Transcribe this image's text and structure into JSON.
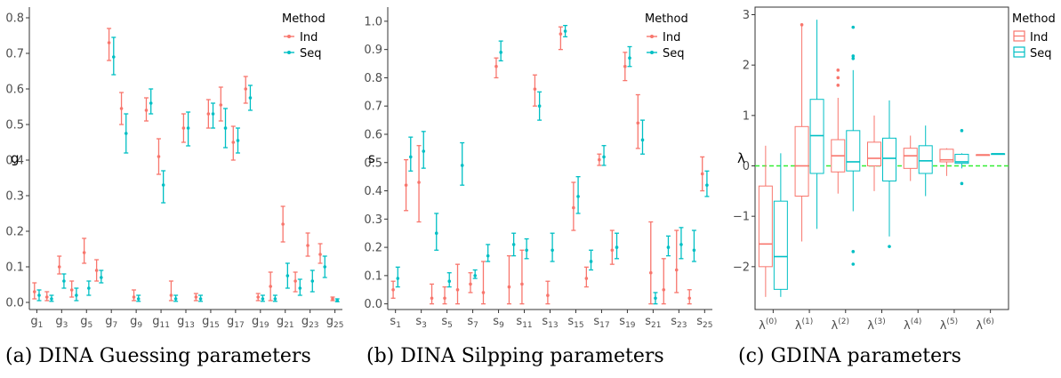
{
  "colors": {
    "ind": "#F8766D",
    "seq": "#00BFC4",
    "zero": "#33ee33"
  },
  "legend": {
    "title": "Method",
    "items": [
      "Ind",
      "Seq"
    ]
  },
  "captions": {
    "a": "(a) DINA Guessing parameters",
    "b": "(b) DINA Silpping parameters",
    "c": "(c) GDINA parameters"
  },
  "chart_data": [
    {
      "type": "scatter",
      "subtype": "errorbar",
      "ylabel": "g",
      "ylim": [
        -0.02,
        0.83
      ],
      "yticks": [
        0.0,
        0.1,
        0.2,
        0.3,
        0.4,
        0.5,
        0.6,
        0.7,
        0.8
      ],
      "ytick_labels": [
        "0.0",
        "0.1",
        "0.2",
        "0.3",
        "0.4",
        "0.5",
        "0.6",
        "0.7",
        "0.8"
      ],
      "x_tick_letter": "g",
      "x_tick_subs": [
        "1",
        "3",
        "5",
        "7",
        "9",
        "11",
        "13",
        "15",
        "17",
        "19",
        "21",
        "23",
        "25"
      ],
      "x_tick_positions": [
        1,
        3,
        5,
        7,
        9,
        11,
        13,
        15,
        17,
        19,
        21,
        23,
        25
      ],
      "xlim": [
        0.4,
        25.6
      ],
      "series": [
        {
          "name": "Ind",
          "x": [
            1,
            2,
            3,
            4,
            5,
            6,
            7,
            8,
            9,
            10,
            11,
            12,
            13,
            14,
            15,
            16,
            17,
            18,
            19,
            20,
            21,
            22,
            23,
            24,
            25
          ],
          "y": [
            0.03,
            0.015,
            0.1,
            0.035,
            0.14,
            0.09,
            0.73,
            0.545,
            0.015,
            0.54,
            0.41,
            0.02,
            0.49,
            0.015,
            0.53,
            0.555,
            0.45,
            0.6,
            0.015,
            0.045,
            0.22,
            0.06,
            0.16,
            0.135,
            0.01
          ],
          "low": [
            0.01,
            0.005,
            0.08,
            0.015,
            0.11,
            0.06,
            0.68,
            0.5,
            0.005,
            0.51,
            0.36,
            0.005,
            0.45,
            0.005,
            0.49,
            0.51,
            0.4,
            0.56,
            0.005,
            0.005,
            0.17,
            0.03,
            0.13,
            0.11,
            0.005
          ],
          "high": [
            0.055,
            0.03,
            0.13,
            0.06,
            0.18,
            0.12,
            0.77,
            0.59,
            0.035,
            0.575,
            0.46,
            0.06,
            0.53,
            0.025,
            0.57,
            0.605,
            0.495,
            0.635,
            0.025,
            0.085,
            0.27,
            0.085,
            0.195,
            0.165,
            0.015
          ]
        },
        {
          "name": "Seq",
          "x": [
            1,
            2,
            3,
            4,
            5,
            6,
            7,
            8,
            9,
            10,
            11,
            12,
            13,
            14,
            15,
            16,
            17,
            18,
            19,
            20,
            21,
            22,
            23,
            24,
            25
          ],
          "y": [
            0.02,
            0.01,
            0.06,
            0.02,
            0.04,
            0.07,
            0.69,
            0.475,
            0.01,
            0.56,
            0.33,
            0.01,
            0.49,
            0.01,
            0.53,
            0.49,
            0.455,
            0.575,
            0.01,
            0.01,
            0.075,
            0.04,
            0.06,
            0.1,
            0.005
          ],
          "low": [
            0.005,
            0.003,
            0.04,
            0.005,
            0.02,
            0.055,
            0.64,
            0.42,
            0.003,
            0.53,
            0.28,
            0.003,
            0.44,
            0.003,
            0.49,
            0.435,
            0.42,
            0.54,
            0.003,
            0.003,
            0.04,
            0.02,
            0.03,
            0.07,
            0.002
          ],
          "high": [
            0.035,
            0.02,
            0.08,
            0.04,
            0.06,
            0.09,
            0.745,
            0.53,
            0.02,
            0.6,
            0.37,
            0.02,
            0.535,
            0.02,
            0.56,
            0.545,
            0.49,
            0.61,
            0.02,
            0.02,
            0.11,
            0.065,
            0.09,
            0.13,
            0.01
          ]
        }
      ]
    },
    {
      "type": "scatter",
      "subtype": "errorbar",
      "ylabel": "s",
      "ylim": [
        -0.02,
        1.05
      ],
      "yticks": [
        0.0,
        0.1,
        0.2,
        0.3,
        0.4,
        0.5,
        0.6,
        0.7,
        0.8,
        0.9,
        1.0
      ],
      "ytick_labels": [
        "0.0",
        "0.1",
        "0.2",
        "0.3",
        "0.4",
        "0.5",
        "0.6",
        "0.7",
        "0.8",
        "0.9",
        "1.0"
      ],
      "x_tick_letter": "s",
      "x_tick_subs": [
        "1",
        "3",
        "5",
        "7",
        "9",
        "11",
        "13",
        "15",
        "17",
        "19",
        "21",
        "23",
        "25"
      ],
      "x_tick_positions": [
        1,
        3,
        5,
        7,
        9,
        11,
        13,
        15,
        17,
        19,
        21,
        23,
        25
      ],
      "xlim": [
        0.4,
        25.6
      ],
      "series": [
        {
          "name": "Ind",
          "x": [
            1,
            2,
            3,
            4,
            5,
            6,
            7,
            8,
            9,
            10,
            11,
            12,
            13,
            14,
            15,
            16,
            17,
            18,
            19,
            20,
            21,
            22,
            23,
            24,
            25
          ],
          "y": [
            0.05,
            0.42,
            0.43,
            0.02,
            0.02,
            0.05,
            0.07,
            0.04,
            0.84,
            0.06,
            0.07,
            0.76,
            0.03,
            0.955,
            0.34,
            0.09,
            0.51,
            0.19,
            0.84,
            0.64,
            0.11,
            0.05,
            0.12,
            0.02,
            0.46
          ],
          "low": [
            0.02,
            0.33,
            0.29,
            0.0,
            0.0,
            0.0,
            0.04,
            0.0,
            0.8,
            0.0,
            0.0,
            0.7,
            0.0,
            0.9,
            0.26,
            0.06,
            0.49,
            0.14,
            0.79,
            0.55,
            0.0,
            0.0,
            0.04,
            0.0,
            0.4
          ],
          "high": [
            0.08,
            0.51,
            0.56,
            0.07,
            0.06,
            0.14,
            0.11,
            0.15,
            0.87,
            0.17,
            0.19,
            0.81,
            0.08,
            0.98,
            0.43,
            0.13,
            0.53,
            0.26,
            0.89,
            0.74,
            0.29,
            0.16,
            0.26,
            0.05,
            0.52
          ]
        },
        {
          "name": "Seq",
          "x": [
            1,
            2,
            3,
            4,
            5,
            6,
            7,
            8,
            9,
            10,
            11,
            12,
            13,
            14,
            15,
            16,
            17,
            18,
            19,
            20,
            21,
            22,
            23,
            24,
            25
          ],
          "y": [
            0.09,
            0.52,
            0.54,
            0.25,
            0.08,
            0.49,
            0.1,
            0.17,
            0.89,
            0.21,
            0.19,
            0.7,
            0.19,
            0.965,
            0.38,
            0.15,
            0.52,
            0.2,
            0.87,
            0.58,
            0.02,
            0.2,
            0.21,
            0.19,
            0.42
          ],
          "low": [
            0.06,
            0.47,
            0.48,
            0.19,
            0.06,
            0.42,
            0.09,
            0.15,
            0.86,
            0.17,
            0.16,
            0.65,
            0.15,
            0.945,
            0.32,
            0.12,
            0.49,
            0.16,
            0.84,
            0.53,
            0.0,
            0.17,
            0.16,
            0.15,
            0.38
          ],
          "high": [
            0.13,
            0.59,
            0.61,
            0.32,
            0.11,
            0.57,
            0.12,
            0.21,
            0.93,
            0.25,
            0.23,
            0.75,
            0.25,
            0.985,
            0.45,
            0.19,
            0.56,
            0.25,
            0.91,
            0.65,
            0.04,
            0.24,
            0.27,
            0.26,
            0.47
          ]
        }
      ]
    },
    {
      "type": "box",
      "ylabel": "λ",
      "ylim": [
        -2.85,
        3.15
      ],
      "yticks": [
        -2,
        -1,
        0,
        1,
        2,
        3
      ],
      "ytick_labels": [
        "−2",
        "−1",
        "0",
        "1",
        "2",
        "3"
      ],
      "categories": [
        "0",
        "1",
        "2",
        "3",
        "4",
        "5",
        "6"
      ],
      "reference_line": 0,
      "series": [
        {
          "name": "Ind",
          "min": [
            -2.6,
            -1.5,
            -0.55,
            -0.5,
            -0.3,
            -0.2,
            0.22
          ],
          "q1": [
            -2.0,
            -0.6,
            -0.12,
            0.0,
            -0.05,
            0.08,
            0.22
          ],
          "median": [
            -1.55,
            0.0,
            0.2,
            0.15,
            0.2,
            0.12,
            0.22
          ],
          "q3": [
            -0.4,
            0.78,
            0.52,
            0.47,
            0.35,
            0.33,
            0.22
          ],
          "max": [
            0.4,
            2.8,
            1.35,
            1.0,
            0.6,
            0.35,
            0.22
          ],
          "outliers": [
            [],
            [
              2.8
            ],
            [
              1.9,
              1.75,
              1.6
            ],
            [],
            [],
            [],
            []
          ]
        },
        {
          "name": "Seq",
          "min": [
            -2.6,
            -1.25,
            -0.9,
            -1.4,
            -0.6,
            -0.05,
            0.24
          ],
          "q1": [
            -2.45,
            -0.15,
            -0.1,
            -0.3,
            -0.15,
            0.05,
            0.24
          ],
          "median": [
            -1.8,
            0.6,
            0.08,
            0.15,
            0.1,
            0.08,
            0.24
          ],
          "q3": [
            -0.7,
            1.32,
            0.7,
            0.55,
            0.4,
            0.23,
            0.24
          ],
          "max": [
            0.25,
            2.9,
            1.9,
            1.3,
            0.8,
            0.25,
            0.24
          ],
          "outliers": [
            [],
            [],
            [
              2.75,
              2.18,
              2.13,
              -1.7,
              -1.95
            ],
            [
              -1.6
            ],
            [],
            [
              0.7,
              -0.35
            ],
            []
          ]
        }
      ]
    }
  ]
}
